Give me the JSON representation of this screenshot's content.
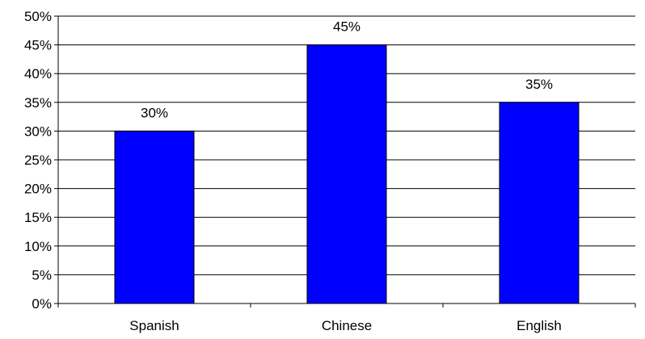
{
  "chart_data": {
    "type": "bar",
    "categories": [
      "Spanish",
      "Chinese",
      "English"
    ],
    "values": [
      30,
      45,
      35
    ],
    "data_labels": [
      "30%",
      "45%",
      "35%"
    ],
    "title": "",
    "xlabel": "",
    "ylabel": "",
    "ylim": [
      0,
      50
    ],
    "y_ticks": [
      0,
      5,
      10,
      15,
      20,
      25,
      30,
      35,
      40,
      45,
      50
    ],
    "y_tick_labels": [
      "0%",
      "5%",
      "10%",
      "15%",
      "20%",
      "25%",
      "30%",
      "35%",
      "40%",
      "45%",
      "50%"
    ],
    "grid": true,
    "legend": "none",
    "bar_color": "#0000FF",
    "bar_edge_color": "#000000"
  }
}
